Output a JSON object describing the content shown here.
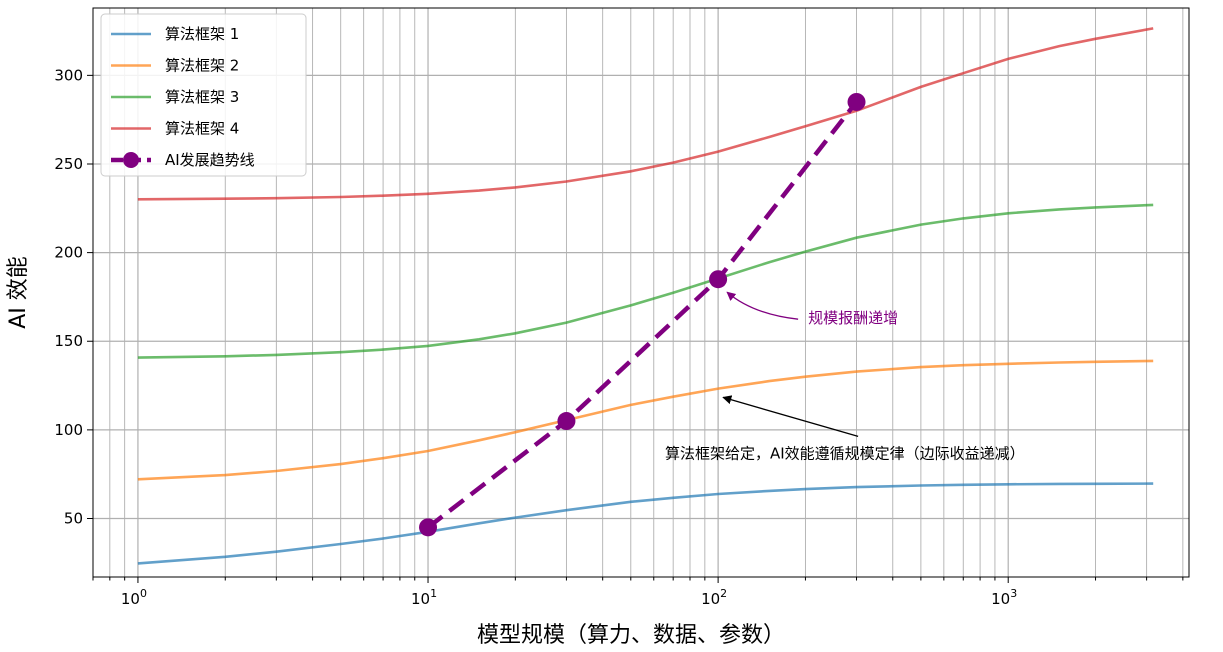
{
  "chart_data": {
    "type": "line",
    "xscale": "log",
    "xlabel": "模型规模（算力、数据、参数）",
    "ylabel": "AI 效能",
    "xlim": [
      0.7,
      4200
    ],
    "ylim": [
      17,
      338
    ],
    "grid": "on",
    "legend_position": "top-left",
    "x_ticks": [
      {
        "value": 1,
        "mantissa": "10",
        "exponent": "0"
      },
      {
        "value": 10,
        "mantissa": "10",
        "exponent": "1"
      },
      {
        "value": 100,
        "mantissa": "10",
        "exponent": "2"
      },
      {
        "value": 1000,
        "mantissa": "10",
        "exponent": "3"
      }
    ],
    "y_ticks": [
      50,
      100,
      150,
      200,
      250,
      300
    ],
    "series": [
      {
        "name": "算法框架 1",
        "color": "#1f77b4",
        "x": [
          1,
          2,
          3,
          5,
          7,
          10,
          15,
          20,
          30,
          50,
          70,
          100,
          150,
          200,
          300,
          500,
          700,
          1000,
          1500,
          2000,
          3162
        ],
        "y": [
          24.7,
          28.4,
          31.3,
          35.6,
          38.7,
          42.5,
          47.3,
          50.5,
          54.7,
          59.4,
          61.7,
          63.8,
          65.6,
          66.6,
          67.7,
          68.6,
          69.0,
          69.3,
          69.5,
          69.6,
          69.7
        ]
      },
      {
        "name": "算法框架 2",
        "color": "#ff7f0e",
        "x": [
          1,
          2,
          3,
          5,
          7,
          10,
          15,
          20,
          30,
          50,
          70,
          100,
          150,
          200,
          300,
          500,
          700,
          1000,
          1500,
          2000,
          3162
        ],
        "y": [
          72.1,
          74.5,
          76.8,
          80.7,
          84.0,
          88.1,
          94.1,
          98.7,
          105.5,
          114.1,
          118.7,
          123.3,
          127.5,
          130.0,
          132.9,
          135.4,
          136.5,
          137.3,
          138.0,
          138.4,
          138.9
        ]
      },
      {
        "name": "算法框架 3",
        "color": "#2ca02c",
        "x": [
          1,
          2,
          3,
          5,
          7,
          10,
          15,
          20,
          30,
          50,
          70,
          100,
          150,
          200,
          300,
          500,
          700,
          1000,
          1500,
          2000,
          3162
        ],
        "y": [
          140.8,
          141.5,
          142.3,
          143.8,
          145.3,
          147.4,
          151.1,
          154.5,
          160.5,
          170.2,
          177.4,
          185.4,
          194.6,
          200.6,
          208.4,
          215.8,
          219.3,
          222.2,
          224.4,
          225.5,
          226.9
        ]
      },
      {
        "name": "算法框架 4",
        "color": "#d62728",
        "x": [
          1,
          2,
          3,
          5,
          7,
          10,
          15,
          20,
          30,
          50,
          70,
          100,
          150,
          200,
          300,
          500,
          700,
          1000,
          1500,
          2000,
          3162
        ],
        "y": [
          230.1,
          230.4,
          230.7,
          231.4,
          232.1,
          233.2,
          235.0,
          236.8,
          240.1,
          245.9,
          250.8,
          257.0,
          265.2,
          271.3,
          280.0,
          293.5,
          301.2,
          309.3,
          316.5,
          320.6,
          326.5
        ]
      },
      {
        "name": "AI发展趋势线",
        "color": "#800080",
        "style": "dashed-with-markers",
        "x": [
          10,
          30,
          100,
          300
        ],
        "y": [
          45,
          105,
          185,
          285
        ]
      }
    ],
    "annotations": [
      {
        "text": "规模报酬递增",
        "color": "#800080",
        "target_x": 100,
        "target_y": 185
      },
      {
        "text": "算法框架给定，AI效能遵循规模定律（边际收益递减）",
        "color": "#000000",
        "target_x": 100,
        "target_y": 120
      }
    ]
  }
}
